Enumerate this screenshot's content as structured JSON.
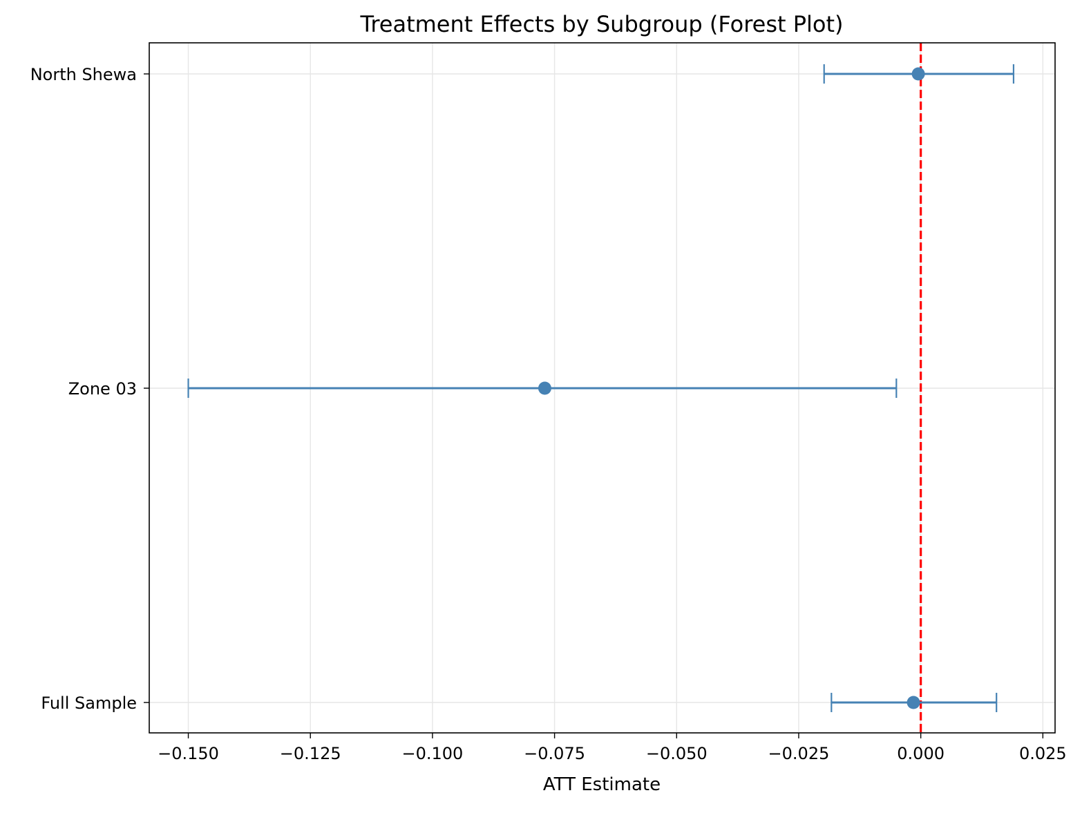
{
  "chart_data": {
    "type": "forest",
    "title": "Treatment Effects by Subgroup (Forest Plot)",
    "xlabel": "ATT Estimate",
    "ylabel": "",
    "xlim": [
      -0.158,
      0.0275
    ],
    "x_ticks": [
      -0.15,
      -0.125,
      -0.1,
      -0.075,
      -0.05,
      -0.025,
      0.0,
      0.025
    ],
    "x_tick_labels": [
      "−0.150",
      "−0.125",
      "−0.100",
      "−0.075",
      "−0.050",
      "−0.025",
      "0.000",
      "0.025"
    ],
    "categories": [
      "Full Sample",
      "Zone 03",
      "North Shewa"
    ],
    "estimates": [
      -0.0015,
      -0.077,
      -0.0005
    ],
    "ci_lower": [
      -0.0183,
      -0.15,
      -0.0198
    ],
    "ci_upper": [
      0.0155,
      -0.005,
      0.019
    ],
    "reference_line": 0,
    "grid": true,
    "colors": {
      "series": "#4682b4",
      "reference": "#ff0000",
      "grid": "#e6e6e6",
      "axes": "#000000"
    }
  }
}
